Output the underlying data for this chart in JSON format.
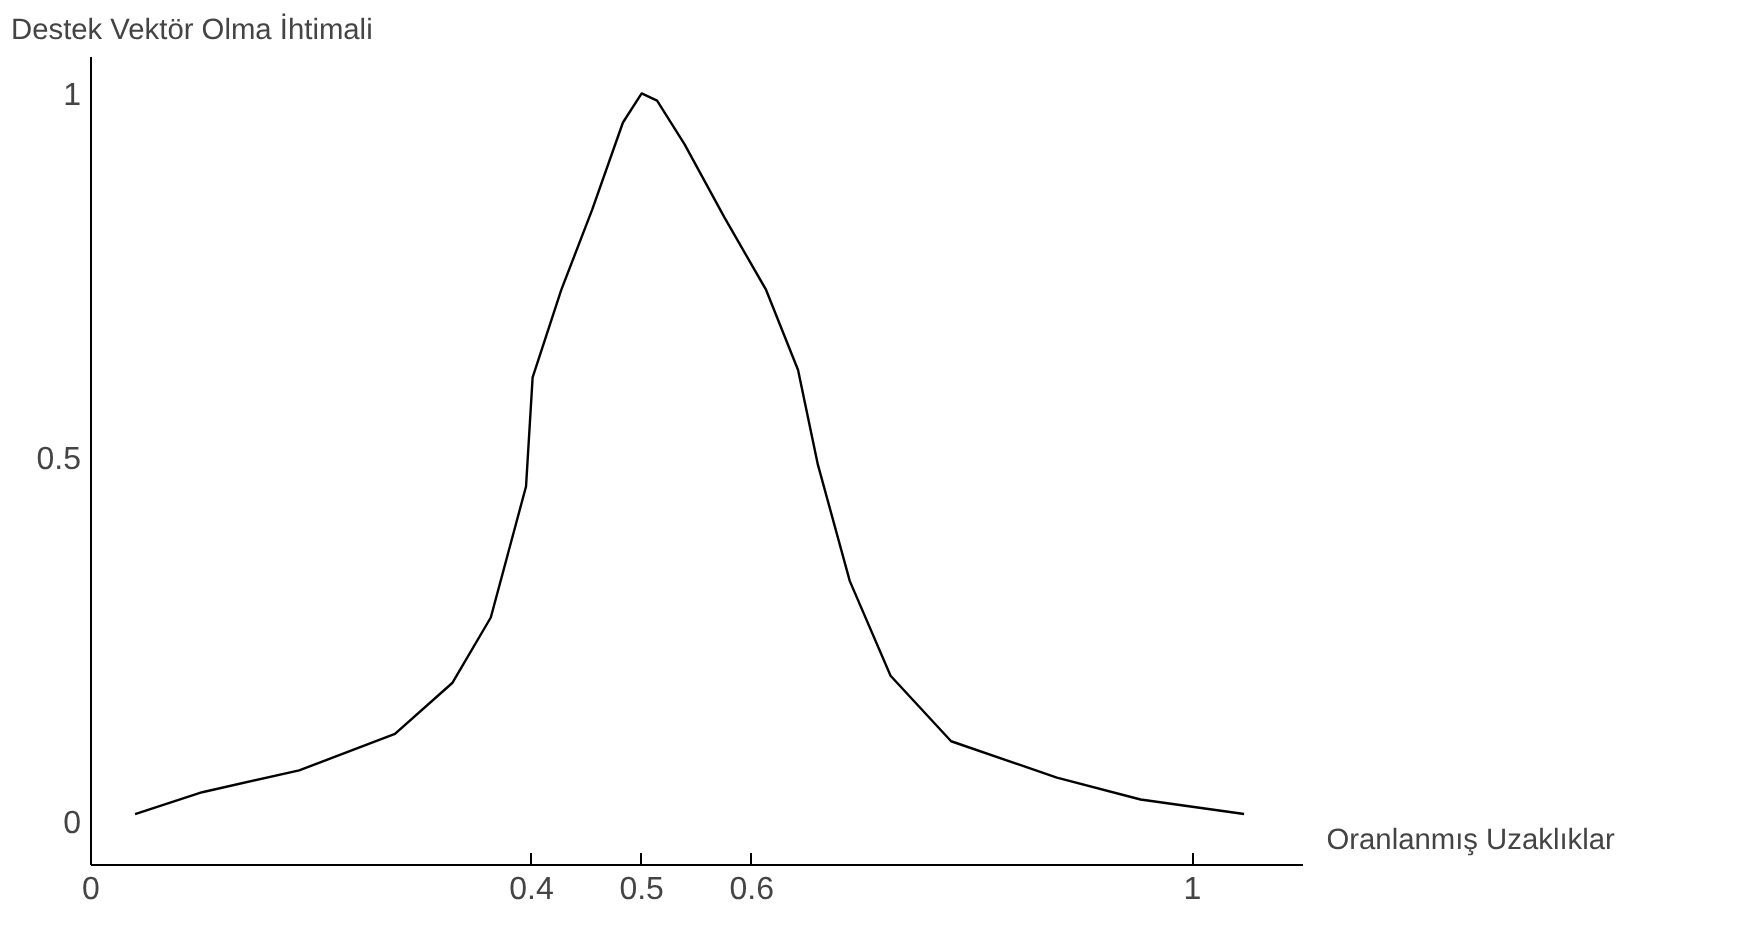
{
  "chart_data": {
    "type": "line",
    "xlabel": "Oranlanmış Uzaklıklar",
    "ylabel": "Destek Vektör Olma İhtimali",
    "x": [
      0.04,
      0.101,
      0.189,
      0.276,
      0.328,
      0.363,
      0.395,
      0.401,
      0.427,
      0.455,
      0.483,
      0.5,
      0.514,
      0.539,
      0.575,
      0.613,
      0.642,
      0.66,
      0.689,
      0.726,
      0.781,
      0.877,
      0.953,
      1.047
    ],
    "series": [
      {
        "color": "#000000",
        "values": [
          0.01,
          0.04,
          0.07,
          0.12,
          0.19,
          0.28,
          0.46,
          0.61,
          0.73,
          0.84,
          0.96,
          1.0,
          0.99,
          0.93,
          0.83,
          0.73,
          0.62,
          0.49,
          0.33,
          0.2,
          0.11,
          0.06,
          0.03,
          0.01
        ]
      }
    ],
    "xlim": [
      0,
      1.1
    ],
    "ylim": [
      -0.06,
      1.05
    ],
    "xticks": [
      0,
      0.4,
      0.5,
      0.6,
      1
    ],
    "yticks": [
      0,
      0.5,
      1
    ],
    "grid": false,
    "marker": "none",
    "line_style": "solid"
  }
}
